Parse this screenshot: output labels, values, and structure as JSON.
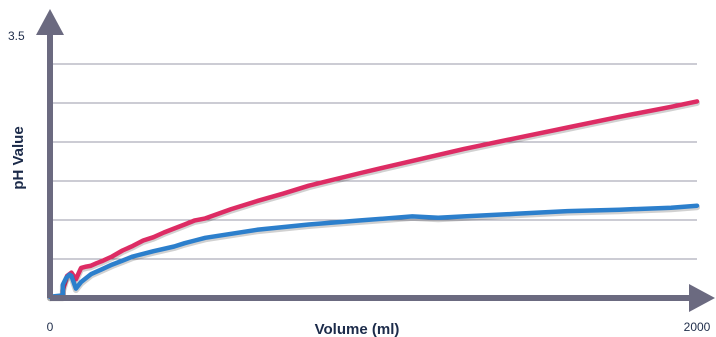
{
  "chart_data": {
    "type": "line",
    "xlabel": "Volume (ml)",
    "ylabel": "pH Value",
    "xlim": [
      0,
      2000
    ],
    "ylim": [
      0,
      3.5
    ],
    "xticks": [
      {
        "value": 0,
        "label": "0"
      },
      {
        "value": 2000,
        "label": "2000"
      }
    ],
    "yticks": [
      {
        "value": 3.5,
        "label": "3.5"
      }
    ],
    "gridlines_y": [
      0.583,
      1.167,
      1.75,
      2.333,
      2.917,
      3.5
    ],
    "grid": true,
    "legend": "none",
    "axis_color": "#6b6a80",
    "grid_color": "#9a99a8",
    "series": [
      {
        "color": "#dd2c64",
        "x": [
          0,
          40,
          40,
          48,
          53,
          66,
          80,
          96,
          112,
          125,
          144,
          160,
          192,
          224,
          256,
          288,
          320,
          352,
          384,
          416,
          448,
          480,
          560,
          640,
          720,
          800,
          960,
          1120,
          1280,
          1440,
          1600,
          1760,
          1920,
          2000
        ],
        "y": [
          0.02,
          0.02,
          0.12,
          0.25,
          0.33,
          0.38,
          0.28,
          0.45,
          0.47,
          0.48,
          0.52,
          0.55,
          0.62,
          0.71,
          0.78,
          0.86,
          0.91,
          0.98,
          1.04,
          1.1,
          1.16,
          1.19,
          1.33,
          1.45,
          1.56,
          1.68,
          1.87,
          2.05,
          2.23,
          2.39,
          2.55,
          2.71,
          2.86,
          2.94
        ]
      },
      {
        "color": "#2c7fcc",
        "x": [
          0,
          40,
          40,
          50,
          60,
          66,
          80,
          96,
          128,
          160,
          192,
          224,
          256,
          320,
          384,
          416,
          448,
          480,
          640,
          800,
          960,
          1120,
          1200,
          1280,
          1440,
          1600,
          1760,
          1920,
          2000
        ],
        "y": [
          0.02,
          0.04,
          0.2,
          0.3,
          0.35,
          0.33,
          0.14,
          0.24,
          0.36,
          0.43,
          0.5,
          0.56,
          0.62,
          0.7,
          0.77,
          0.82,
          0.86,
          0.9,
          1.02,
          1.1,
          1.16,
          1.22,
          1.2,
          1.22,
          1.26,
          1.3,
          1.32,
          1.35,
          1.38
        ]
      }
    ]
  }
}
